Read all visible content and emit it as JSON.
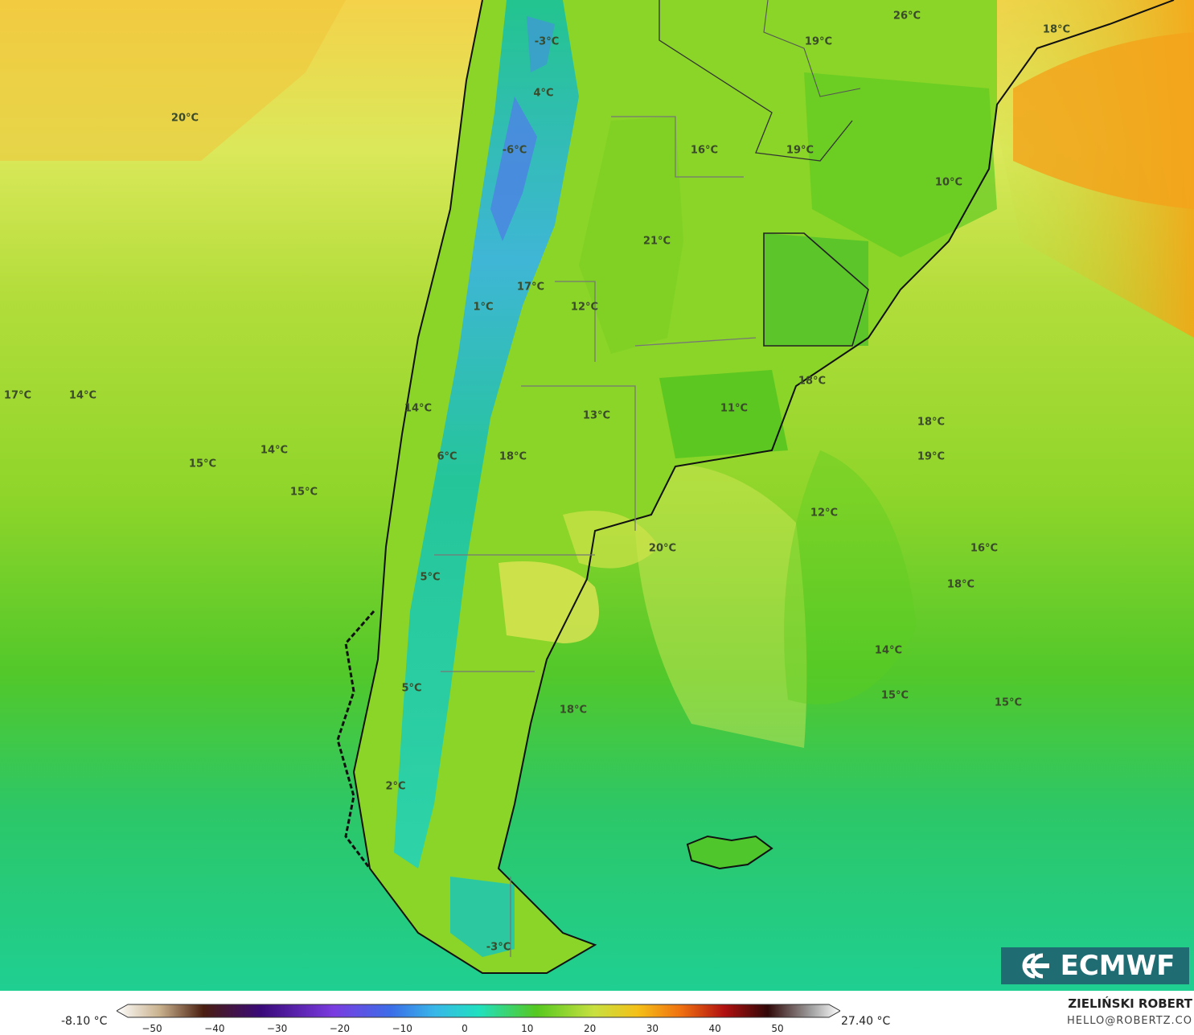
{
  "colors": {
    "hot": "#f7a81a",
    "warm": "#f4e65a",
    "mild": "#b5df3c",
    "green": "#63cc1e",
    "cool": "#22c98c",
    "cold": "#1ea8b8",
    "frozen": "#4e8fe0",
    "land_outline": "#111111",
    "border": "#666666"
  },
  "map": {
    "labels": [
      {
        "text": "20°C"
      },
      {
        "text": "-3°C"
      },
      {
        "text": "4°C"
      },
      {
        "text": "-6°C"
      },
      {
        "text": "26°C"
      },
      {
        "text": "19°C"
      },
      {
        "text": "18°C"
      },
      {
        "text": "16°C"
      },
      {
        "text": "19°C"
      },
      {
        "text": "10°C"
      },
      {
        "text": "21°C"
      },
      {
        "text": "17°C"
      },
      {
        "text": "1°C"
      },
      {
        "text": "12°C"
      },
      {
        "text": "17°C"
      },
      {
        "text": "14°C"
      },
      {
        "text": "14°C"
      },
      {
        "text": "13°C"
      },
      {
        "text": "11°C"
      },
      {
        "text": "18°C"
      },
      {
        "text": "18°C"
      },
      {
        "text": "19°C"
      },
      {
        "text": "6°C"
      },
      {
        "text": "18°C"
      },
      {
        "text": "15°C"
      },
      {
        "text": "14°C"
      },
      {
        "text": "15°C"
      },
      {
        "text": "12°C"
      },
      {
        "text": "20°C"
      },
      {
        "text": "16°C"
      },
      {
        "text": "5°C"
      },
      {
        "text": "18°C"
      },
      {
        "text": "14°C"
      },
      {
        "text": "5°C"
      },
      {
        "text": "15°C"
      },
      {
        "text": "15°C"
      },
      {
        "text": "18°C"
      },
      {
        "text": "2°C"
      },
      {
        "text": "-3°C"
      }
    ]
  },
  "logo": {
    "text": "ECMWF",
    "icon": "ecmwf-swirl-icon"
  },
  "legend": {
    "min_label": "-8.10 °C",
    "max_label": "27.40 °C",
    "ticks": [
      "−50",
      "−40",
      "−30",
      "−20",
      "−10",
      "0",
      "10",
      "20",
      "30",
      "40",
      "50"
    ]
  },
  "credits": {
    "author": "ZIELIŃSKI ROBERT",
    "email": "HELLO@ROBERTZ.CO"
  }
}
